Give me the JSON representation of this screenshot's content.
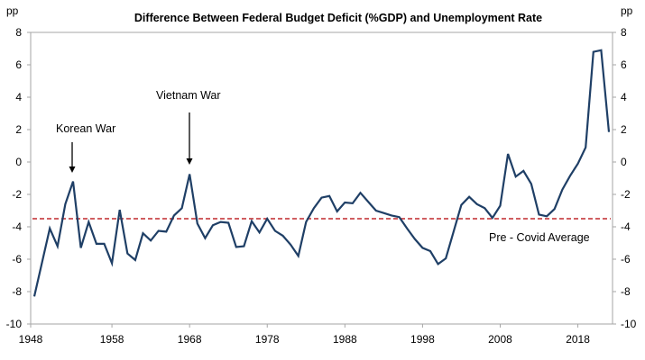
{
  "chart_data": {
    "type": "line",
    "title": "Difference Between Federal Budget Deficit (%GDP) and Unemployment Rate",
    "ylabel_left": "pp",
    "ylabel_right": "pp",
    "xlabel": "",
    "ylim": [
      -10,
      8
    ],
    "xlim": [
      1948,
      2022
    ],
    "yticks": [
      8,
      6,
      4,
      2,
      0,
      -2,
      -4,
      -6,
      -8,
      -10
    ],
    "xticks": [
      1948,
      1958,
      1968,
      1978,
      1988,
      1998,
      2008,
      2018
    ],
    "grid": false,
    "series": [
      {
        "name": "Deficit minus Unemployment",
        "color": "#1f3f66",
        "x": [
          1948,
          1949,
          1950,
          1951,
          1952,
          1953,
          1954,
          1955,
          1956,
          1957,
          1958,
          1959,
          1960,
          1961,
          1962,
          1963,
          1964,
          1965,
          1966,
          1967,
          1968,
          1969,
          1970,
          1971,
          1972,
          1973,
          1974,
          1975,
          1976,
          1977,
          1978,
          1979,
          1980,
          1981,
          1982,
          1983,
          1984,
          1985,
          1986,
          1987,
          1988,
          1989,
          1990,
          1991,
          1992,
          1993,
          1994,
          1995,
          1996,
          1997,
          1998,
          1999,
          2000,
          2001,
          2002,
          2003,
          2004,
          2005,
          2006,
          2007,
          2008,
          2009,
          2010,
          2011,
          2012,
          2013,
          2014,
          2015,
          2016,
          2017,
          2018,
          2019,
          2020,
          2021,
          2022
        ],
        "values": [
          -8.3,
          -6.2,
          -4.1,
          -5.2,
          -2.6,
          -1.2,
          -5.3,
          -3.7,
          -5.05,
          -5.05,
          -6.25,
          -2.95,
          -5.65,
          -6.05,
          -4.4,
          -4.85,
          -4.25,
          -4.3,
          -3.3,
          -2.85,
          -0.75,
          -3.8,
          -4.7,
          -3.9,
          -3.7,
          -3.75,
          -5.25,
          -5.2,
          -3.65,
          -4.35,
          -3.5,
          -4.25,
          -4.55,
          -5.1,
          -5.8,
          -3.7,
          -2.85,
          -2.2,
          -2.1,
          -3.05,
          -2.5,
          -2.55,
          -1.9,
          -2.45,
          -3.0,
          -3.15,
          -3.3,
          -3.4,
          -4.1,
          -4.75,
          -5.3,
          -5.5,
          -6.3,
          -5.95,
          -4.3,
          -2.65,
          -2.15,
          -2.6,
          -2.85,
          -3.45,
          -2.7,
          0.5,
          -0.9,
          -0.55,
          -1.35,
          -3.25,
          -3.35,
          -2.9,
          -1.7,
          -0.85,
          -0.1,
          0.9,
          6.8,
          6.9,
          1.85
        ]
      }
    ],
    "reference_line": {
      "label": "Pre - Covid Average",
      "value": -3.5,
      "color": "#c0282d",
      "style": "dashed"
    },
    "annotations": [
      {
        "text": "Korean War",
        "year": 1953,
        "arrow": true
      },
      {
        "text": "Vietnam War",
        "year": 1968,
        "arrow": true
      }
    ],
    "legend": "none"
  }
}
